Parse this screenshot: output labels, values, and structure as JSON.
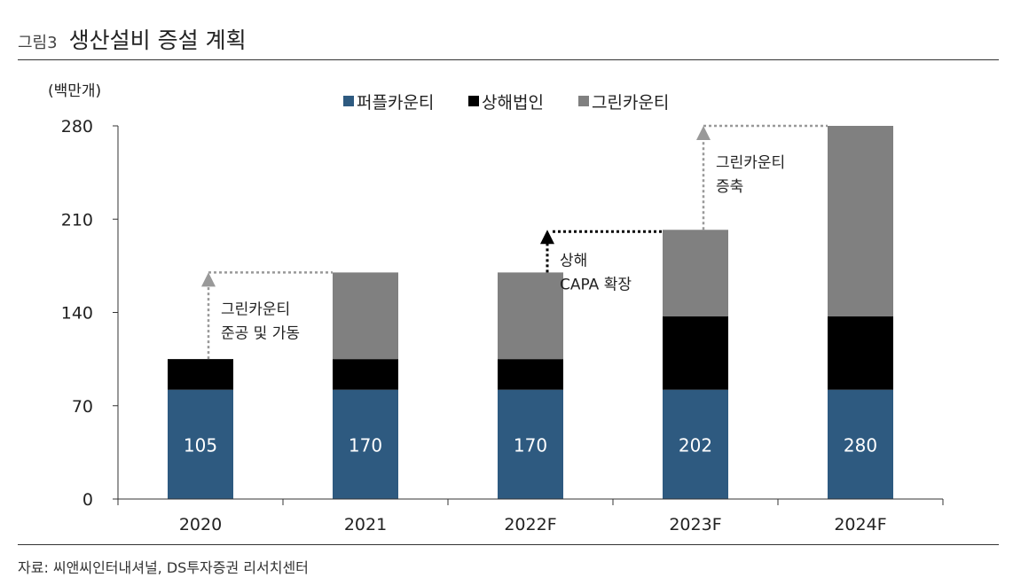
{
  "header": {
    "figure_label": "그림3",
    "title": "생산설비 증설 계획"
  },
  "source": "자료: 씨앤씨인터내셔널, DS투자증권 리서치센터",
  "colors": {
    "perpel": "#2e5a80",
    "shanghai": "#000000",
    "greenkarauti": "#808080",
    "arrow_gray": "#999999",
    "arrow_black": "#000000"
  },
  "chart_data": {
    "type": "bar",
    "stacked": true,
    "unit_label": "(백만개)",
    "categories": [
      "2020",
      "2021",
      "2022F",
      "2023F",
      "2024F"
    ],
    "ylim": [
      0,
      280
    ],
    "yticks": [
      "0",
      "70",
      "140",
      "210",
      "280"
    ],
    "series": [
      {
        "name": "퍼플카운티",
        "values": [
          82,
          82,
          82,
          82,
          82
        ]
      },
      {
        "name": "상해법인",
        "values": [
          23,
          23,
          23,
          55,
          55
        ]
      },
      {
        "name": "그린카운티",
        "values": [
          0,
          65,
          65,
          65,
          143
        ]
      }
    ],
    "totals": [
      "105",
      "170",
      "170",
      "202",
      "280"
    ],
    "annotations": [
      {
        "lines": [
          "그린카운티",
          "준공 및 가동"
        ],
        "from": 0,
        "to": 1,
        "style": "gray"
      },
      {
        "lines": [
          "상해",
          "CAPA 확장"
        ],
        "from": 2,
        "to": 3,
        "style": "black"
      },
      {
        "lines": [
          "그린카운티",
          "증축"
        ],
        "from": 3,
        "to": 4,
        "style": "gray"
      }
    ]
  }
}
